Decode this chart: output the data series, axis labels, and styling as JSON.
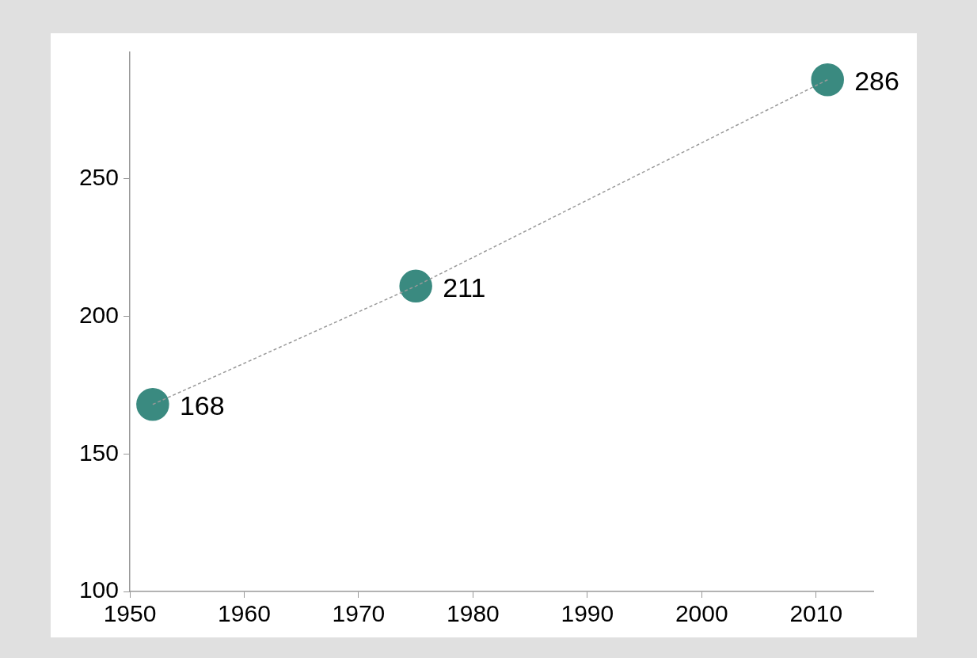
{
  "chart_data": {
    "type": "scatter",
    "x": [
      1952,
      1975,
      2011
    ],
    "series": [
      {
        "type": "line",
        "color": "#999999",
        "values": [
          168,
          211,
          286
        ],
        "line_style": "dashed",
        "marker": "none"
      },
      {
        "color": "#3a8a80",
        "values": [
          168,
          211,
          286
        ],
        "value_labels": [
          "168",
          "211",
          "286"
        ],
        "marker": "circle"
      }
    ],
    "xlim": [
      1950,
      2015
    ],
    "xticks": [
      1950,
      1960,
      1970,
      1980,
      1990,
      2000,
      2010
    ],
    "ylim": [
      100,
      296
    ],
    "yticks": [
      100,
      150,
      200,
      250
    ],
    "grid": false,
    "legend": false
  }
}
